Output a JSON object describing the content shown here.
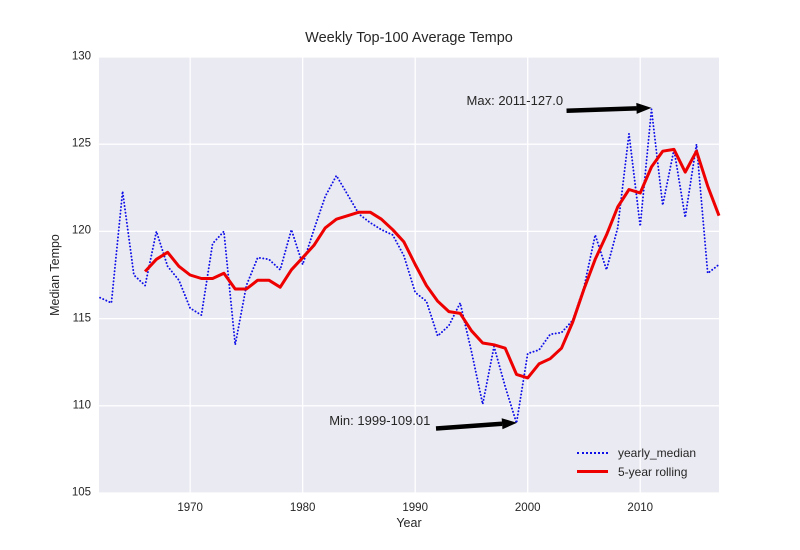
{
  "chart_data": {
    "type": "line",
    "title": "Weekly Top-100 Average Tempo",
    "xlabel": "Year",
    "ylabel": "Median Tempo",
    "xlim": [
      1961.9,
      2017.0
    ],
    "ylim": [
      105,
      130
    ],
    "x_ticks": [
      1970,
      1980,
      1990,
      2000,
      2010
    ],
    "y_ticks": [
      105,
      110,
      115,
      120,
      125,
      130
    ],
    "grid": true,
    "plot_bg": "#EAEAF2",
    "grid_color": "#FFFFFF",
    "text_color": "#262626",
    "legend_position": "lower right",
    "series": [
      {
        "name": "yearly_median",
        "color": "#0f0fe8",
        "style": "dotted",
        "line_width": 1.9,
        "x": [
          1962,
          1963,
          1964,
          1965,
          1966,
          1967,
          1968,
          1969,
          1970,
          1971,
          1972,
          1973,
          1974,
          1975,
          1976,
          1977,
          1978,
          1979,
          1980,
          1981,
          1982,
          1983,
          1984,
          1985,
          1986,
          1987,
          1988,
          1989,
          1990,
          1991,
          1992,
          1993,
          1994,
          1995,
          1996,
          1997,
          1998,
          1999,
          2000,
          2001,
          2002,
          2003,
          2004,
          2005,
          2006,
          2007,
          2008,
          2009,
          2010,
          2011,
          2012,
          2013,
          2014,
          2015,
          2016,
          2017
        ],
        "y": [
          116.2,
          115.9,
          122.3,
          117.5,
          116.9,
          120.0,
          118.0,
          117.2,
          115.6,
          115.2,
          119.3,
          120.0,
          113.5,
          116.9,
          118.5,
          118.4,
          117.8,
          120.1,
          118.1,
          120.1,
          122.0,
          123.2,
          122.1,
          121.0,
          120.5,
          120.1,
          119.8,
          118.6,
          116.5,
          116.0,
          114.0,
          114.6,
          115.9,
          113.1,
          110.1,
          113.4,
          111.1,
          109.01,
          113.0,
          113.2,
          114.1,
          114.2,
          114.9,
          116.8,
          119.8,
          117.8,
          120.2,
          125.6,
          120.3,
          127.0,
          121.5,
          124.7,
          120.8,
          125.0,
          117.6,
          118.1
        ]
      },
      {
        "name": "5-year rolling",
        "color": "#ee0000",
        "style": "solid",
        "line_width": 3,
        "x": [
          1966,
          1967,
          1968,
          1969,
          1970,
          1971,
          1972,
          1973,
          1974,
          1975,
          1976,
          1977,
          1978,
          1979,
          1980,
          1981,
          1982,
          1983,
          1984,
          1985,
          1986,
          1987,
          1988,
          1989,
          1990,
          1991,
          1992,
          1993,
          1994,
          1995,
          1996,
          1997,
          1998,
          1999,
          2000,
          2001,
          2002,
          2003,
          2004,
          2005,
          2006,
          2007,
          2008,
          2009,
          2010,
          2011,
          2012,
          2013,
          2014,
          2015,
          2016,
          2017
        ],
        "y": [
          117.7,
          118.4,
          118.8,
          118.0,
          117.5,
          117.3,
          117.3,
          117.6,
          116.7,
          116.7,
          117.2,
          117.2,
          116.8,
          117.8,
          118.5,
          119.2,
          120.2,
          120.7,
          120.9,
          121.1,
          121.1,
          120.7,
          120.1,
          119.4,
          118.1,
          116.9,
          116.0,
          115.4,
          115.3,
          114.3,
          113.6,
          113.5,
          113.3,
          111.8,
          111.6,
          112.4,
          112.7,
          113.3,
          114.8,
          116.7,
          118.4,
          119.8,
          121.4,
          122.4,
          122.2,
          123.7,
          124.6,
          124.7,
          123.4,
          124.6,
          122.6,
          120.9
        ]
      }
    ],
    "annotations": [
      {
        "label": "Max: 2011-127.0",
        "point_year": 2011,
        "point_value": 127.0,
        "text_anchor": [
          2003.15,
          127.45
        ],
        "arrow_from": [
          2003.45,
          126.92
        ],
        "arrow_to": [
          2011.0,
          127.08
        ]
      },
      {
        "label": "Min: 1999-109.01",
        "point_year": 1999,
        "point_value": 109.01,
        "text_anchor": [
          1991.35,
          109.15
        ],
        "arrow_from": [
          1991.85,
          108.7
        ],
        "arrow_to": [
          1999.05,
          109.03
        ]
      }
    ]
  }
}
